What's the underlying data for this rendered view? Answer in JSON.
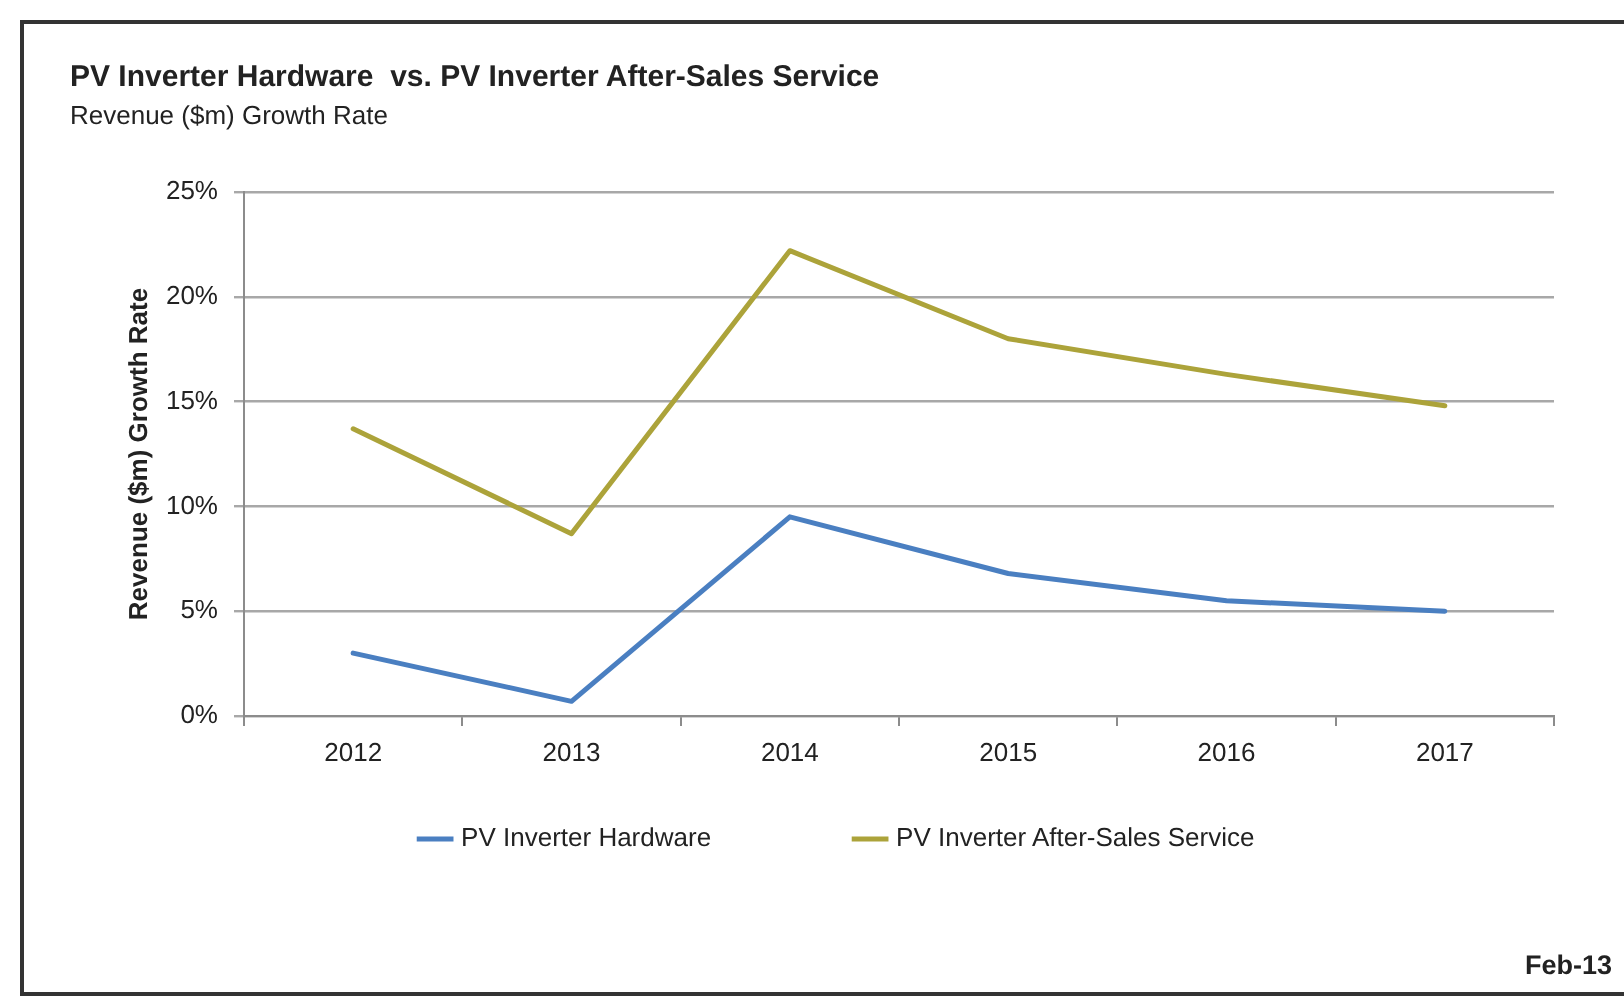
{
  "chart_data": {
    "type": "line",
    "title": "PV Inverter Hardware  vs. PV Inverter After-Sales Service",
    "subtitle": "Revenue ($m) Growth Rate",
    "ylabel": "Revenue ($m) Growth Rate",
    "categories": [
      "2012",
      "2013",
      "2014",
      "2015",
      "2016",
      "2017"
    ],
    "series": [
      {
        "name": "PV Inverter Hardware",
        "color": "#4a7fc1",
        "values": [
          3.0,
          0.7,
          9.5,
          6.8,
          5.5,
          5.0
        ]
      },
      {
        "name": "PV Inverter After-Sales Service",
        "color": "#aca33a",
        "values": [
          13.7,
          8.7,
          22.2,
          18.0,
          16.3,
          14.8
        ]
      }
    ],
    "ylim": [
      0,
      25
    ],
    "yticks": [
      {
        "value": 0,
        "label": "0%"
      },
      {
        "value": 5,
        "label": "5%"
      },
      {
        "value": 10,
        "label": "10%"
      },
      {
        "value": 15,
        "label": "15%"
      },
      {
        "value": 20,
        "label": "20%"
      },
      {
        "value": 25,
        "label": "25%"
      }
    ],
    "grid": "y",
    "legend": "bottom",
    "annotations": [
      "Feb-13"
    ]
  }
}
